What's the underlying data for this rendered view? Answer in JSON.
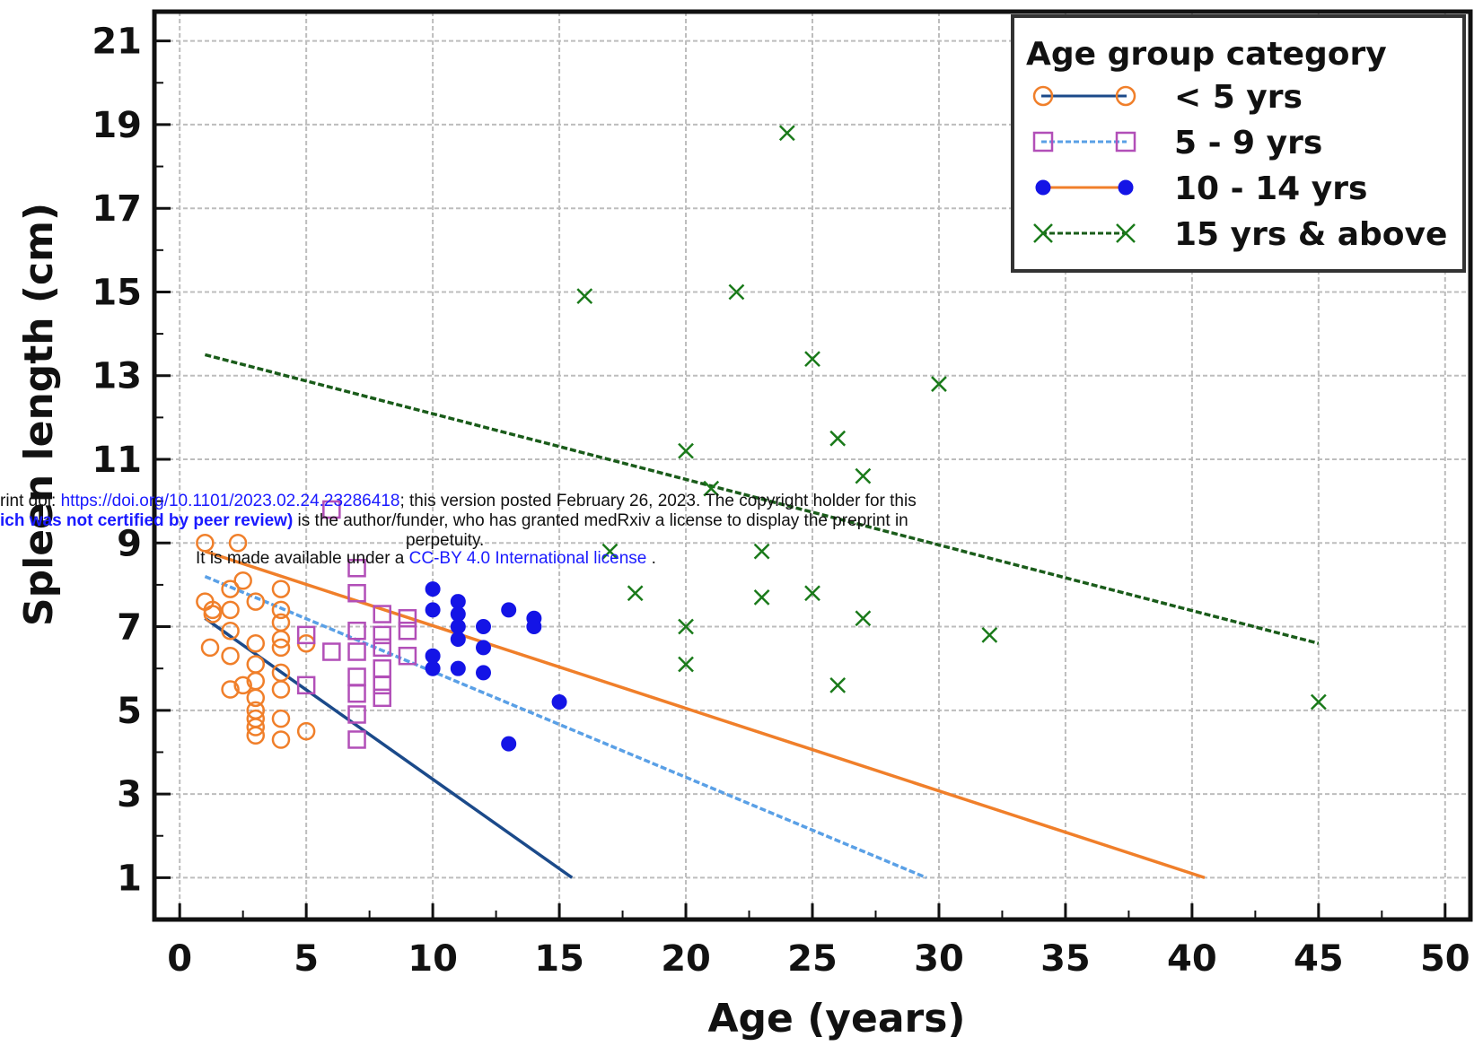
{
  "chart_data": {
    "type": "scatter",
    "xlabel": "Age (years)",
    "ylabel": "Spleen length (cm)",
    "xlim": [
      -1,
      51
    ],
    "ylim": [
      0,
      21.7
    ],
    "xticks": [
      0,
      5,
      10,
      15,
      20,
      25,
      30,
      35,
      40,
      45,
      50
    ],
    "yticks": [
      1,
      3,
      5,
      7,
      9,
      11,
      13,
      15,
      17,
      19,
      21
    ],
    "grid": true,
    "legend": {
      "title": "Age group category",
      "placement": "top-right"
    },
    "series": [
      {
        "name": "< 5 yrs",
        "marker": "open-circle",
        "marker_color": "#f07f2a",
        "line_color": "#1b4a8a",
        "line_style": "solid",
        "points": [
          [
            1,
            9.0
          ],
          [
            2.3,
            9.0
          ],
          [
            1,
            7.6
          ],
          [
            1.3,
            7.4
          ],
          [
            2,
            7.4
          ],
          [
            2.5,
            8.1
          ],
          [
            2,
            7.9
          ],
          [
            3,
            7.6
          ],
          [
            4,
            7.9
          ],
          [
            4,
            7.4
          ],
          [
            4,
            7.1
          ],
          [
            4,
            6.7
          ],
          [
            1.2,
            6.5
          ],
          [
            2,
            6.9
          ],
          [
            2,
            6.3
          ],
          [
            3,
            6.6
          ],
          [
            3,
            6.1
          ],
          [
            4,
            6.5
          ],
          [
            4,
            5.9
          ],
          [
            5,
            6.6
          ],
          [
            2,
            5.5
          ],
          [
            2.5,
            5.6
          ],
          [
            3,
            5.7
          ],
          [
            3,
            5.3
          ],
          [
            3,
            5.0
          ],
          [
            3,
            4.8
          ],
          [
            3,
            4.6
          ],
          [
            3,
            4.4
          ],
          [
            4,
            5.5
          ],
          [
            4,
            4.8
          ],
          [
            4,
            4.3
          ],
          [
            5,
            4.5
          ],
          [
            1.3,
            7.3
          ]
        ],
        "fit": [
          [
            1,
            7.2
          ],
          [
            15.5,
            1.0
          ]
        ]
      },
      {
        "name": "5 - 9 yrs",
        "marker": "open-square",
        "marker_color": "#b24fb8",
        "line_color": "#5aa0e6",
        "line_style": "dashed",
        "points": [
          [
            5,
            6.8
          ],
          [
            5,
            5.6
          ],
          [
            6,
            6.4
          ],
          [
            6,
            9.8
          ],
          [
            7,
            8.4
          ],
          [
            7,
            7.8
          ],
          [
            7,
            6.9
          ],
          [
            7,
            6.4
          ],
          [
            7,
            5.8
          ],
          [
            7,
            5.4
          ],
          [
            7,
            4.9
          ],
          [
            7,
            4.3
          ],
          [
            8,
            7.3
          ],
          [
            8,
            6.8
          ],
          [
            8,
            6.5
          ],
          [
            8,
            6.0
          ],
          [
            8,
            5.6
          ],
          [
            8,
            5.3
          ],
          [
            9,
            7.2
          ],
          [
            9,
            6.9
          ],
          [
            9,
            6.3
          ]
        ],
        "fit": [
          [
            1,
            8.2
          ],
          [
            29.5,
            1.0
          ]
        ]
      },
      {
        "name": "10 - 14 yrs",
        "marker": "filled-circle",
        "marker_color": "#1414e6",
        "line_color": "#f07f2a",
        "line_style": "solid",
        "points": [
          [
            10,
            7.9
          ],
          [
            10,
            7.4
          ],
          [
            10,
            6.3
          ],
          [
            10,
            6.0
          ],
          [
            11,
            7.6
          ],
          [
            11,
            7.3
          ],
          [
            11,
            7.0
          ],
          [
            11,
            6.7
          ],
          [
            11,
            6.0
          ],
          [
            12,
            7.0
          ],
          [
            12,
            6.5
          ],
          [
            12,
            5.9
          ],
          [
            13,
            7.4
          ],
          [
            13,
            4.2
          ],
          [
            14,
            7.2
          ],
          [
            14,
            7.0
          ],
          [
            15,
            5.2
          ]
        ],
        "fit": [
          [
            1,
            8.8
          ],
          [
            40.5,
            1.0
          ]
        ]
      },
      {
        "name": "15 yrs & above",
        "marker": "x",
        "marker_color": "#1a7a1a",
        "line_color": "#1a5c1a",
        "line_style": "dashed",
        "points": [
          [
            16,
            14.9
          ],
          [
            17,
            8.8
          ],
          [
            18,
            7.8
          ],
          [
            20,
            11.2
          ],
          [
            20,
            7.0
          ],
          [
            20,
            6.1
          ],
          [
            21,
            10.3
          ],
          [
            22,
            15.0
          ],
          [
            23,
            8.8
          ],
          [
            23,
            7.7
          ],
          [
            24,
            18.8
          ],
          [
            25,
            13.4
          ],
          [
            25,
            7.8
          ],
          [
            26,
            11.5
          ],
          [
            26,
            5.6
          ],
          [
            27,
            10.6
          ],
          [
            27,
            7.2
          ],
          [
            30,
            12.8
          ],
          [
            32,
            6.8
          ],
          [
            45,
            5.2
          ]
        ],
        "fit": [
          [
            1,
            13.5
          ],
          [
            45,
            6.6
          ]
        ]
      }
    ]
  },
  "watermark": {
    "line1_pre": "rint doi: ",
    "line1_link": "https://doi.org/10.1101/2023.02.24.23286418",
    "line1_post": "; this version posted February 26, 2023. The copyright holder for this",
    "line2_bold": "ich was not certified by peer review)",
    "line2_post": " is the author/funder, who has granted medRxiv a license to display the preprint in",
    "line3": "perpetuity.",
    "line4_pre": "It is made available under a ",
    "line4_link": "CC-BY 4.0 International license",
    "line4_post": " ."
  }
}
